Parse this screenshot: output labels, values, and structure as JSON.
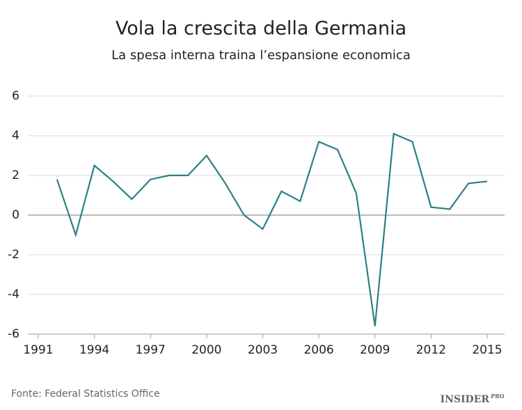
{
  "chart_data": {
    "type": "line",
    "title": "Vola la crescita della Germania",
    "subtitle": "La spesa interna traina l’espansione economica",
    "x": [
      1992,
      1993,
      1994,
      1995,
      1996,
      1997,
      1998,
      1999,
      2000,
      2001,
      2002,
      2003,
      2004,
      2005,
      2006,
      2007,
      2008,
      2009,
      2010,
      2011,
      2012,
      2013,
      2014,
      2015
    ],
    "series": [
      {
        "name": "Germania",
        "color": "#2a8084",
        "values": [
          1.8,
          -1.0,
          2.5,
          1.7,
          0.8,
          1.8,
          2.0,
          2.0,
          3.0,
          1.6,
          0.0,
          -0.7,
          1.2,
          0.7,
          3.7,
          3.3,
          1.1,
          -5.6,
          4.1,
          3.7,
          0.4,
          0.3,
          1.6,
          1.7
        ]
      }
    ],
    "xlim": [
      1991,
      2015
    ],
    "xticks": [
      1991,
      1994,
      1997,
      2000,
      2003,
      2006,
      2009,
      2012,
      2015
    ],
    "ylim": [
      -6,
      6
    ],
    "yticks": [
      -6,
      -4,
      -2,
      0,
      2,
      4,
      6
    ],
    "grid": true,
    "source": "Fonte: Federal Statistics Office",
    "logo": "INSIDER",
    "logo_sub": "PRO"
  }
}
